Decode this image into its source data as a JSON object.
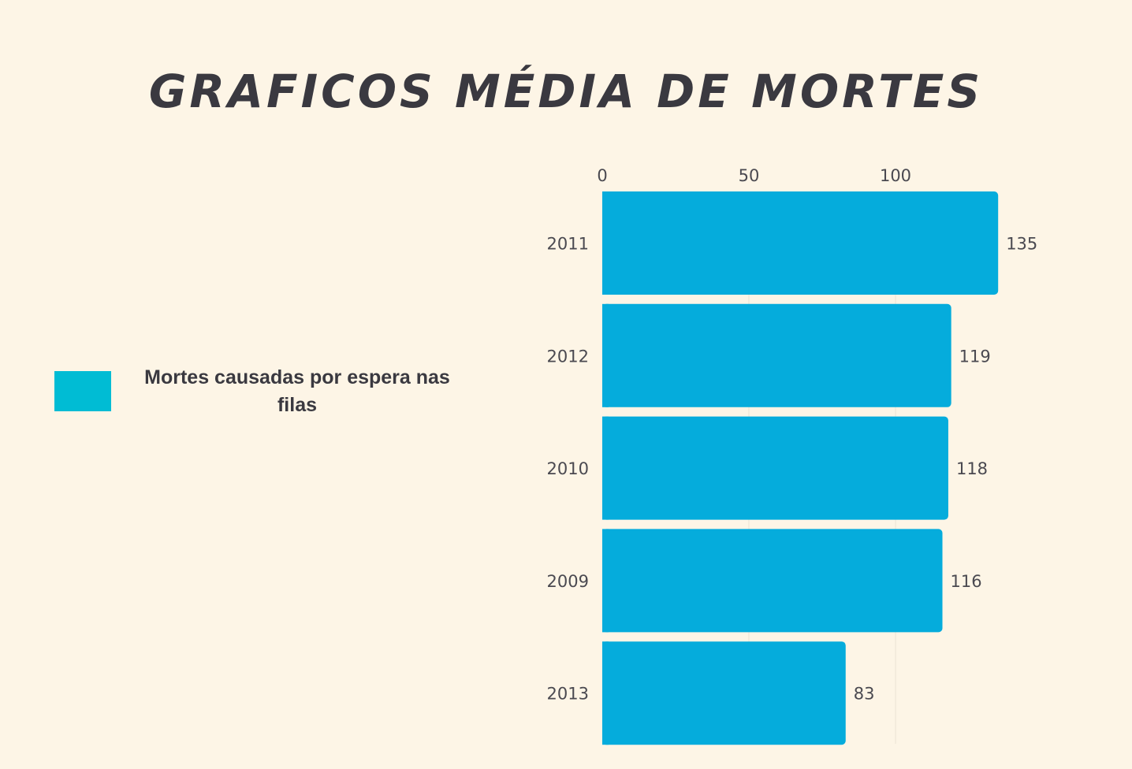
{
  "title": "GRAFICOS MÉDIA DE MORTES",
  "legend": {
    "label": "Mortes causadas por espera nas filas",
    "color": "#00bcd4"
  },
  "colors": {
    "background": "#fdf5e6",
    "bar": "#05acdc",
    "text": "#3a3940"
  },
  "chart_data": {
    "type": "bar",
    "orientation": "horizontal",
    "categories": [
      "2011",
      "2012",
      "2010",
      "2009",
      "2013"
    ],
    "values": [
      135,
      119,
      118,
      116,
      83
    ],
    "series": [
      {
        "name": "Mortes causadas por espera nas filas",
        "values": [
          135,
          119,
          118,
          116,
          83
        ]
      }
    ],
    "xticks": [
      0,
      50,
      100
    ],
    "xlim": [
      0,
      135
    ],
    "xaxis_position": "top",
    "grid": true,
    "legend_position": "left"
  }
}
